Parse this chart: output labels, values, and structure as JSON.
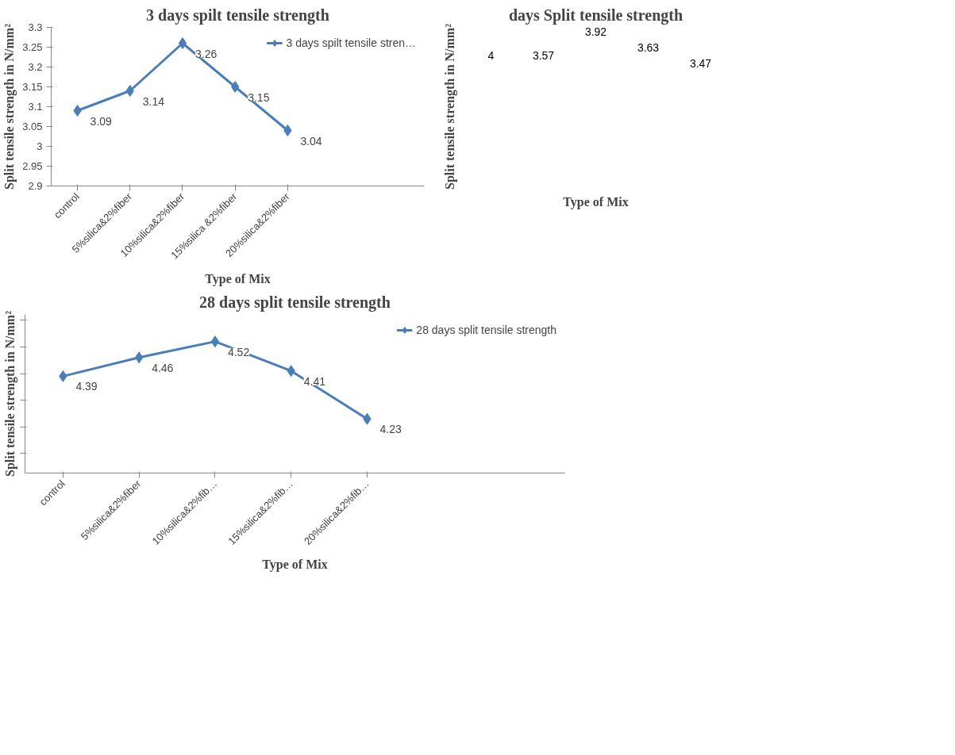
{
  "chart_data": [
    {
      "type": "line",
      "title": "3 days spilt tensile strength",
      "xlabel": "Type of Mix",
      "ylabel": "Split tensile strength in N/mm²",
      "categories": [
        "control",
        "5%silica&2%fiber",
        "10%silica&2%fiber",
        "15%silica &2%fiber",
        "20%silica&2%fiber"
      ],
      "series": [
        {
          "name": "3 days spilt tensile stren…",
          "color": "#4a7ebb",
          "values": [
            3.09,
            3.14,
            3.26,
            3.15,
            3.04
          ]
        }
      ],
      "ylim": [
        2.9,
        3.3
      ],
      "yticks": [
        2.9,
        2.95,
        3,
        3.05,
        3.1,
        3.15,
        3.2,
        3.25,
        3.3
      ],
      "marker": "diamond",
      "data_labels": true,
      "legend": "right",
      "grid": false
    },
    {
      "type": "other",
      "title": "days Split tensile strength",
      "xlabel": "Type of Mix",
      "ylabel": "Split tensile strength in N/mm²",
      "annotations": [
        "4",
        "3.57",
        "3.92",
        "3.63",
        "3.47"
      ]
    },
    {
      "type": "line",
      "title": "28 days split tensile strength",
      "xlabel": "Type of Mix",
      "ylabel": "Split tensile strength in N/mm²",
      "categories": [
        "control",
        "5%silica&2%fiber",
        "10%silica&2%fib…",
        "15%silica&2%fib…",
        "20%silica&2%fib…"
      ],
      "series": [
        {
          "name": "28 days split tensile strength",
          "color": "#4a7ebb",
          "values": [
            4.39,
            4.46,
            4.52,
            4.41,
            4.23
          ]
        }
      ],
      "marker": "diamond",
      "data_labels": true,
      "legend": "right",
      "grid": false,
      "tick_labels": "x"
    }
  ]
}
